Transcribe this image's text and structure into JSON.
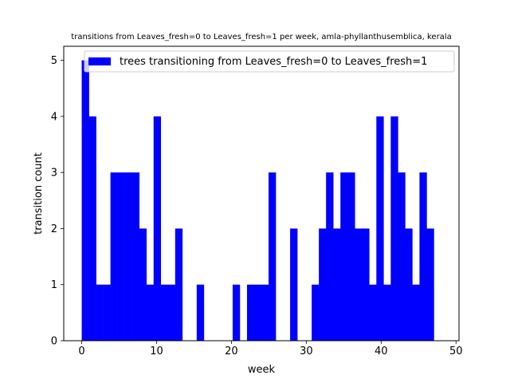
{
  "chart_data": {
    "type": "bar",
    "title": "transitions from Leaves_fresh=0 to Leaves_fresh=1 per week, amla-phyllanthusemblica, kerala",
    "xlabel": "week",
    "ylabel": "transition count",
    "xlim": [
      -2.4,
      50.4
    ],
    "ylim": [
      0,
      5.25
    ],
    "xticks": [
      0,
      10,
      20,
      30,
      40,
      50
    ],
    "yticks": [
      0,
      1,
      2,
      3,
      4,
      5
    ],
    "bin_width": 0.96,
    "bin_starts": [
      0,
      0.96,
      1.92,
      2.88,
      3.84,
      4.8,
      5.76,
      6.72,
      7.68,
      8.64,
      9.6,
      10.56,
      11.52,
      12.48,
      13.44,
      14.4,
      15.36,
      16.32,
      17.28,
      18.24,
      19.2,
      20.16,
      21.12,
      22.08,
      23.04,
      24,
      24.96,
      25.92,
      26.88,
      27.84,
      28.8,
      29.76,
      30.72,
      31.68,
      32.64,
      33.6,
      34.56,
      35.52,
      36.48,
      37.44,
      38.4,
      39.36,
      40.32,
      41.28,
      42.24,
      43.2,
      44.16,
      45.12,
      46.08,
      47.04
    ],
    "series": [
      {
        "name": "trees transitioning from Leaves_fresh=0 to Leaves_fresh=1",
        "color": "#0000ff",
        "values": [
          5,
          4,
          1,
          1,
          3,
          3,
          3,
          3,
          2,
          1,
          4,
          1,
          1,
          2,
          0,
          0,
          1,
          0,
          0,
          0,
          0,
          1,
          0,
          1,
          1,
          1,
          3,
          0,
          0,
          2,
          0,
          0,
          1,
          2,
          3,
          2,
          3,
          3,
          2,
          2,
          1,
          4,
          1,
          4,
          3,
          2,
          1,
          3,
          2,
          0
        ]
      }
    ],
    "legend_position": "top-right",
    "grid": false
  }
}
